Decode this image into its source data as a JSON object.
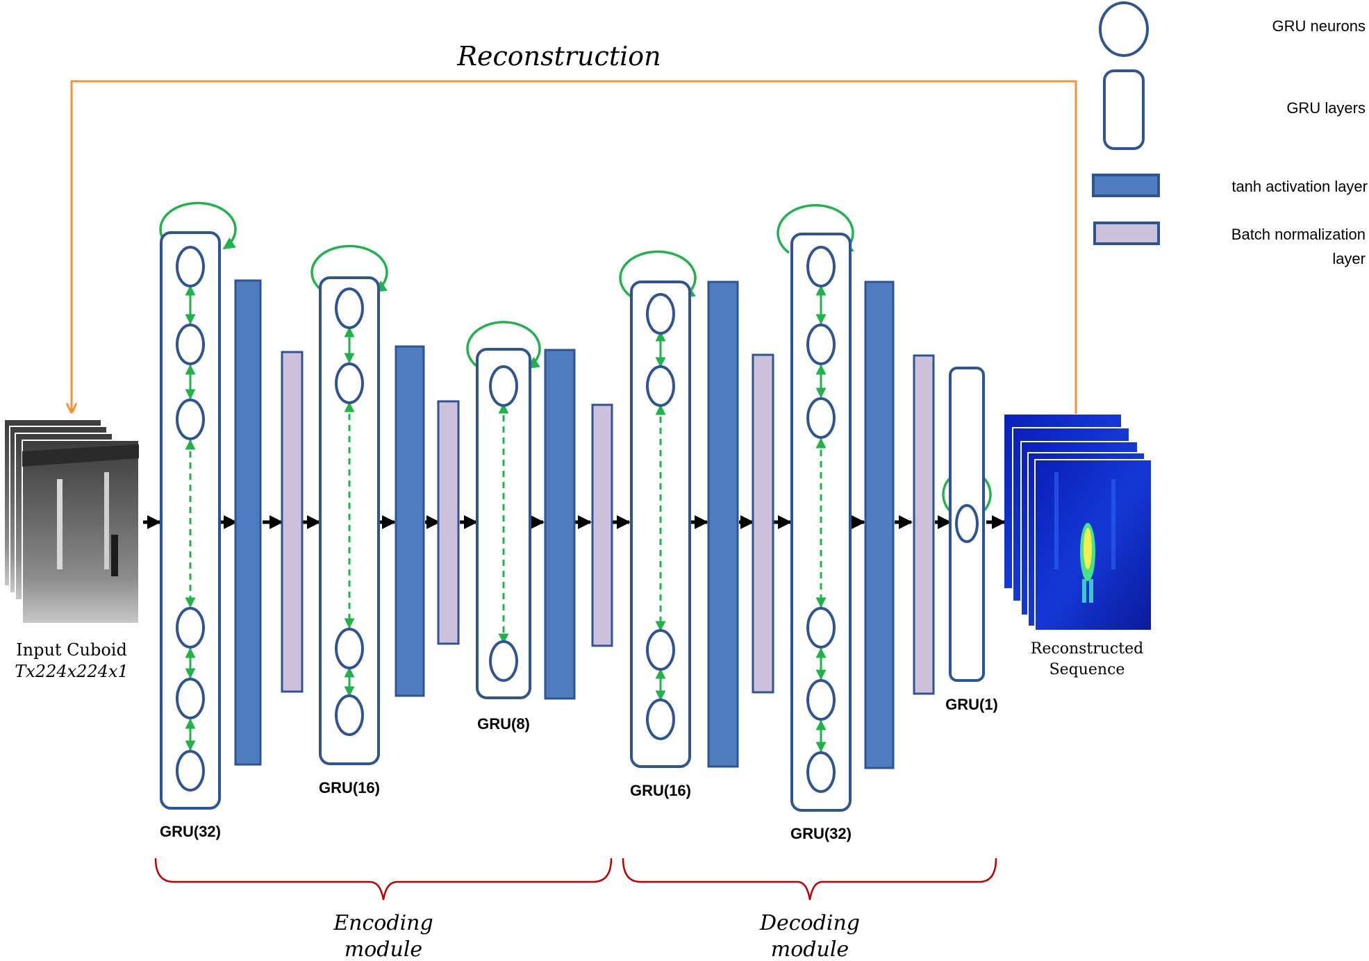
{
  "title": "Reconstruction",
  "input": {
    "line1": "Input Cuboid",
    "line2": "Tx224x224x1"
  },
  "output": {
    "line1": "Reconstructed",
    "line2": "Sequence"
  },
  "layers": {
    "enc_gru32": "GRU(32)",
    "enc_gru16": "GRU(16)",
    "enc_gru8": "GRU(8)",
    "dec_gru16": "GRU(16)",
    "dec_gru32": "GRU(32)",
    "dec_gru1": "GRU(1)"
  },
  "modules": {
    "encoding": {
      "line1": "Encoding",
      "line2": "module"
    },
    "decoding": {
      "line1": "Decoding",
      "line2": "module"
    }
  },
  "legend": {
    "neurons": "GRU neurons",
    "layers": "GRU layers",
    "tanh": "tanh activation layer",
    "batchnorm_line1": "Batch normalization",
    "batchnorm_line2": "layer"
  },
  "colors": {
    "gru_stroke": "#2f5496",
    "tanh_fill": "#4f7bbf",
    "batchnorm_fill": "#cdc1dc",
    "recurrent": "#1fb34a",
    "reconstruction": "#f39237",
    "brace": "#c00000",
    "flow_arrow": "#000000"
  }
}
